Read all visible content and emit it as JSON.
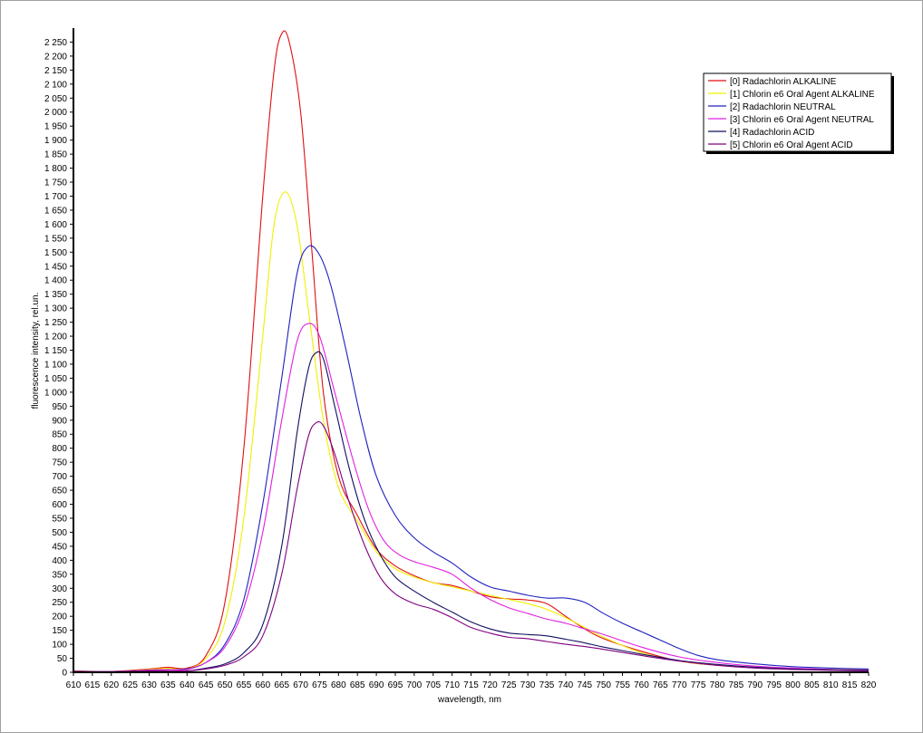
{
  "chart_data": {
    "type": "line",
    "xlabel": "wavelength, nm",
    "ylabel": "fluorescence intensity, rel.un.",
    "xlim": [
      610,
      820
    ],
    "ylim": [
      0,
      2300
    ],
    "x_ticks": [
      610,
      615,
      620,
      625,
      630,
      635,
      640,
      645,
      650,
      655,
      660,
      665,
      670,
      675,
      680,
      685,
      690,
      695,
      700,
      705,
      710,
      715,
      720,
      725,
      730,
      735,
      740,
      745,
      750,
      755,
      760,
      765,
      770,
      775,
      780,
      785,
      790,
      795,
      800,
      805,
      810,
      815,
      820
    ],
    "y_ticks": [
      0,
      50,
      100,
      150,
      200,
      250,
      300,
      350,
      400,
      450,
      500,
      550,
      600,
      650,
      700,
      750,
      800,
      850,
      900,
      950,
      1000,
      1050,
      1100,
      1150,
      1200,
      1250,
      1300,
      1350,
      1400,
      1450,
      1500,
      1550,
      1600,
      1650,
      1700,
      1750,
      1800,
      1850,
      1900,
      1950,
      2000,
      2050,
      2100,
      2150,
      2200,
      2250
    ],
    "y_tick_labels": [
      "0",
      "50",
      "100",
      "150",
      "200",
      "250",
      "300",
      "350",
      "400",
      "450",
      "500",
      "550",
      "600",
      "650",
      "700",
      "750",
      "800",
      "850",
      "900",
      "950",
      "1 000",
      "1 050",
      "1 100",
      "1 150",
      "1 200",
      "1 250",
      "1 300",
      "1 350",
      "1 400",
      "1 450",
      "1 500",
      "1 550",
      "1 600",
      "1 650",
      "1 700",
      "1 750",
      "1 800",
      "1 850",
      "1 900",
      "1 950",
      "2 000",
      "2 050",
      "2 100",
      "2 150",
      "2 200",
      "2 250"
    ],
    "legend_position": "top-right",
    "grid": false,
    "series": [
      {
        "name": "[0] Radachlorin ALKALINE",
        "color": "#e01010",
        "points": [
          [
            610,
            5
          ],
          [
            620,
            3
          ],
          [
            630,
            12
          ],
          [
            635,
            18
          ],
          [
            640,
            15
          ],
          [
            645,
            60
          ],
          [
            650,
            250
          ],
          [
            655,
            800
          ],
          [
            660,
            1700
          ],
          [
            663,
            2150
          ],
          [
            665,
            2280
          ],
          [
            667,
            2250
          ],
          [
            670,
            2000
          ],
          [
            673,
            1500
          ],
          [
            676,
            1000
          ],
          [
            680,
            700
          ],
          [
            685,
            560
          ],
          [
            690,
            440
          ],
          [
            695,
            380
          ],
          [
            700,
            345
          ],
          [
            705,
            320
          ],
          [
            710,
            310
          ],
          [
            715,
            290
          ],
          [
            720,
            270
          ],
          [
            725,
            262
          ],
          [
            730,
            258
          ],
          [
            735,
            245
          ],
          [
            740,
            200
          ],
          [
            745,
            155
          ],
          [
            750,
            120
          ],
          [
            760,
            75
          ],
          [
            770,
            40
          ],
          [
            780,
            25
          ],
          [
            790,
            18
          ],
          [
            800,
            14
          ],
          [
            810,
            10
          ],
          [
            820,
            8
          ]
        ]
      },
      {
        "name": "[1] Chlorin e6 Oral Agent ALKALINE",
        "color": "#f0f000",
        "points": [
          [
            610,
            4
          ],
          [
            620,
            3
          ],
          [
            630,
            10
          ],
          [
            635,
            14
          ],
          [
            640,
            12
          ],
          [
            645,
            50
          ],
          [
            650,
            180
          ],
          [
            655,
            550
          ],
          [
            660,
            1200
          ],
          [
            663,
            1600
          ],
          [
            666,
            1715
          ],
          [
            669,
            1600
          ],
          [
            672,
            1300
          ],
          [
            676,
            900
          ],
          [
            680,
            660
          ],
          [
            685,
            540
          ],
          [
            690,
            430
          ],
          [
            695,
            370
          ],
          [
            700,
            340
          ],
          [
            705,
            320
          ],
          [
            710,
            305
          ],
          [
            715,
            290
          ],
          [
            720,
            275
          ],
          [
            725,
            260
          ],
          [
            730,
            245
          ],
          [
            735,
            225
          ],
          [
            740,
            195
          ],
          [
            745,
            160
          ],
          [
            750,
            125
          ],
          [
            760,
            70
          ],
          [
            770,
            40
          ],
          [
            780,
            25
          ],
          [
            790,
            18
          ],
          [
            800,
            14
          ],
          [
            810,
            10
          ],
          [
            820,
            8
          ]
        ]
      },
      {
        "name": "[2] Radachlorin NEUTRAL",
        "color": "#2020c0",
        "points": [
          [
            610,
            3
          ],
          [
            620,
            2
          ],
          [
            630,
            8
          ],
          [
            635,
            10
          ],
          [
            640,
            12
          ],
          [
            645,
            35
          ],
          [
            650,
            100
          ],
          [
            655,
            260
          ],
          [
            660,
            600
          ],
          [
            665,
            1050
          ],
          [
            669,
            1420
          ],
          [
            672,
            1520
          ],
          [
            675,
            1490
          ],
          [
            678,
            1380
          ],
          [
            682,
            1150
          ],
          [
            686,
            900
          ],
          [
            690,
            700
          ],
          [
            695,
            560
          ],
          [
            700,
            480
          ],
          [
            705,
            430
          ],
          [
            710,
            390
          ],
          [
            715,
            340
          ],
          [
            720,
            305
          ],
          [
            725,
            290
          ],
          [
            730,
            275
          ],
          [
            735,
            265
          ],
          [
            740,
            265
          ],
          [
            745,
            250
          ],
          [
            750,
            210
          ],
          [
            755,
            175
          ],
          [
            760,
            145
          ],
          [
            765,
            115
          ],
          [
            770,
            85
          ],
          [
            775,
            60
          ],
          [
            780,
            45
          ],
          [
            790,
            30
          ],
          [
            800,
            20
          ],
          [
            810,
            15
          ],
          [
            820,
            12
          ]
        ]
      },
      {
        "name": "[3] Chlorin e6 Oral Agent NEUTRAL",
        "color": "#e020e0",
        "points": [
          [
            610,
            4
          ],
          [
            620,
            3
          ],
          [
            630,
            8
          ],
          [
            635,
            10
          ],
          [
            640,
            10
          ],
          [
            645,
            35
          ],
          [
            650,
            90
          ],
          [
            655,
            230
          ],
          [
            660,
            500
          ],
          [
            665,
            900
          ],
          [
            669,
            1180
          ],
          [
            672,
            1245
          ],
          [
            675,
            1200
          ],
          [
            679,
            1000
          ],
          [
            684,
            750
          ],
          [
            688,
            580
          ],
          [
            692,
            470
          ],
          [
            696,
            420
          ],
          [
            700,
            395
          ],
          [
            705,
            375
          ],
          [
            710,
            350
          ],
          [
            715,
            300
          ],
          [
            720,
            260
          ],
          [
            725,
            230
          ],
          [
            730,
            210
          ],
          [
            735,
            190
          ],
          [
            740,
            175
          ],
          [
            745,
            155
          ],
          [
            750,
            135
          ],
          [
            760,
            90
          ],
          [
            770,
            55
          ],
          [
            780,
            35
          ],
          [
            790,
            22
          ],
          [
            800,
            15
          ],
          [
            810,
            10
          ],
          [
            820,
            8
          ]
        ]
      },
      {
        "name": "[4] Radachlorin ACID",
        "color": "#101060",
        "points": [
          [
            610,
            3
          ],
          [
            620,
            2
          ],
          [
            630,
            5
          ],
          [
            635,
            5
          ],
          [
            640,
            5
          ],
          [
            645,
            15
          ],
          [
            650,
            30
          ],
          [
            655,
            70
          ],
          [
            660,
            170
          ],
          [
            665,
            450
          ],
          [
            669,
            850
          ],
          [
            672,
            1080
          ],
          [
            674,
            1140
          ],
          [
            676,
            1120
          ],
          [
            679,
            950
          ],
          [
            683,
            720
          ],
          [
            687,
            540
          ],
          [
            691,
            420
          ],
          [
            695,
            340
          ],
          [
            700,
            290
          ],
          [
            705,
            250
          ],
          [
            710,
            215
          ],
          [
            715,
            180
          ],
          [
            720,
            155
          ],
          [
            725,
            140
          ],
          [
            730,
            135
          ],
          [
            735,
            130
          ],
          [
            740,
            118
          ],
          [
            745,
            105
          ],
          [
            750,
            90
          ],
          [
            760,
            65
          ],
          [
            770,
            42
          ],
          [
            780,
            28
          ],
          [
            790,
            18
          ],
          [
            800,
            12
          ],
          [
            810,
            9
          ],
          [
            820,
            7
          ]
        ]
      },
      {
        "name": "[5] Chlorin e6 Oral Agent ACID",
        "color": "#800080",
        "points": [
          [
            610,
            3
          ],
          [
            620,
            2
          ],
          [
            630,
            5
          ],
          [
            635,
            5
          ],
          [
            640,
            5
          ],
          [
            645,
            12
          ],
          [
            650,
            25
          ],
          [
            655,
            55
          ],
          [
            660,
            130
          ],
          [
            665,
            350
          ],
          [
            669,
            650
          ],
          [
            672,
            840
          ],
          [
            674,
            890
          ],
          [
            676,
            880
          ],
          [
            679,
            780
          ],
          [
            683,
            600
          ],
          [
            687,
            450
          ],
          [
            691,
            340
          ],
          [
            695,
            280
          ],
          [
            700,
            245
          ],
          [
            705,
            225
          ],
          [
            710,
            195
          ],
          [
            715,
            160
          ],
          [
            720,
            140
          ],
          [
            725,
            125
          ],
          [
            730,
            120
          ],
          [
            735,
            110
          ],
          [
            740,
            100
          ],
          [
            745,
            92
          ],
          [
            750,
            82
          ],
          [
            760,
            60
          ],
          [
            770,
            40
          ],
          [
            780,
            25
          ],
          [
            790,
            15
          ],
          [
            800,
            10
          ],
          [
            810,
            7
          ],
          [
            820,
            5
          ]
        ]
      }
    ]
  }
}
